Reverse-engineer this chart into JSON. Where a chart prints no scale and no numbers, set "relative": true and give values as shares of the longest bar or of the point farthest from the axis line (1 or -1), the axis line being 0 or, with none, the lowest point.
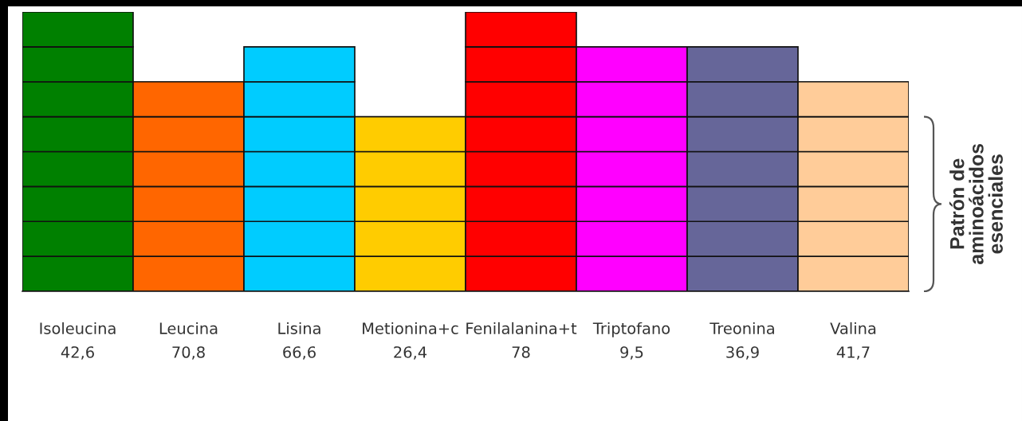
{
  "chart_data": {
    "type": "bar",
    "stacked": true,
    "relative": true,
    "categories": [
      "Isoleucina\n42,6",
      "Leucina\n70,8",
      "Lisina\n66,6",
      "Metionina+c\n26,4",
      "Fenilalanina+t\n78",
      "Triptofano\n9,5",
      "Treonina\n36,9",
      "Valina\n41,7"
    ],
    "series": [
      {
        "colors": [
          "#008000",
          "#ff6600",
          "#00ccff",
          "#ffcc00",
          "#ff0000",
          "#ff00ff",
          "#666699",
          "#ffcc99"
        ],
        "values": [
          0.125,
          0.125,
          0.125,
          0.125,
          0.125,
          0.125,
          0.125,
          0.125
        ]
      },
      {
        "colors": [
          "#008000",
          "#ff6600",
          "#00ccff",
          "#ffcc00",
          "#ff0000",
          "#ff00ff",
          "#666699",
          "#ffcc99"
        ],
        "values": [
          0.125,
          0.125,
          0.125,
          0.125,
          0.125,
          0.125,
          0.125,
          0.125
        ]
      },
      {
        "colors": [
          "#008000",
          "#ff6600",
          "#00ccff",
          "#ffcc00",
          "#ff0000",
          "#ff00ff",
          "#666699",
          "#ffcc99"
        ],
        "values": [
          0.125,
          0.125,
          0.125,
          0.125,
          0.125,
          0.125,
          0.125,
          0.125
        ]
      },
      {
        "colors": [
          "#008000",
          "#ff6600",
          "#00ccff",
          "#ffcc00",
          "#ff0000",
          "#ff00ff",
          "#666699",
          "#ffcc99"
        ],
        "values": [
          0.125,
          0.125,
          0.125,
          0.125,
          0.125,
          0.125,
          0.125,
          0.125
        ]
      },
      {
        "colors": [
          "#008000",
          "#ff6600",
          "#00ccff",
          "#ffcc00",
          "#ff0000",
          "#ff00ff",
          "#666699",
          "#ffcc99"
        ],
        "values": [
          0.125,
          0.125,
          0.125,
          0.125,
          0.125,
          0.125,
          0.125,
          0.125
        ]
      },
      {
        "colors": [
          "#008000",
          "#ff6600",
          "#00ccff",
          "#ffcc00",
          "#ff0000",
          "#ff00ff",
          "#666699",
          "#ffcc99"
        ],
        "values": [
          0.125,
          0.125,
          0.125,
          null,
          0.125,
          0.125,
          0.125,
          0.125
        ]
      },
      {
        "colors": [
          "#008000",
          "#ff6600",
          "#00ccff",
          "#ffcc00",
          "#ff0000",
          "#ff00ff",
          "#666699",
          "#ffcc99"
        ],
        "values": [
          0.125,
          null,
          0.125,
          null,
          0.125,
          0.125,
          0.125,
          null
        ]
      },
      {
        "colors": [
          "#008000",
          "#ff6600",
          "#00ccff",
          "#ffcc00",
          "#ff0000",
          "#ff00ff",
          "#666699",
          "#ffcc99"
        ],
        "values": [
          0.125,
          null,
          null,
          null,
          0.125,
          null,
          null,
          null
        ]
      }
    ],
    "annotations": [
      "Patrón de\naminoácidos\nesenciales"
    ]
  }
}
